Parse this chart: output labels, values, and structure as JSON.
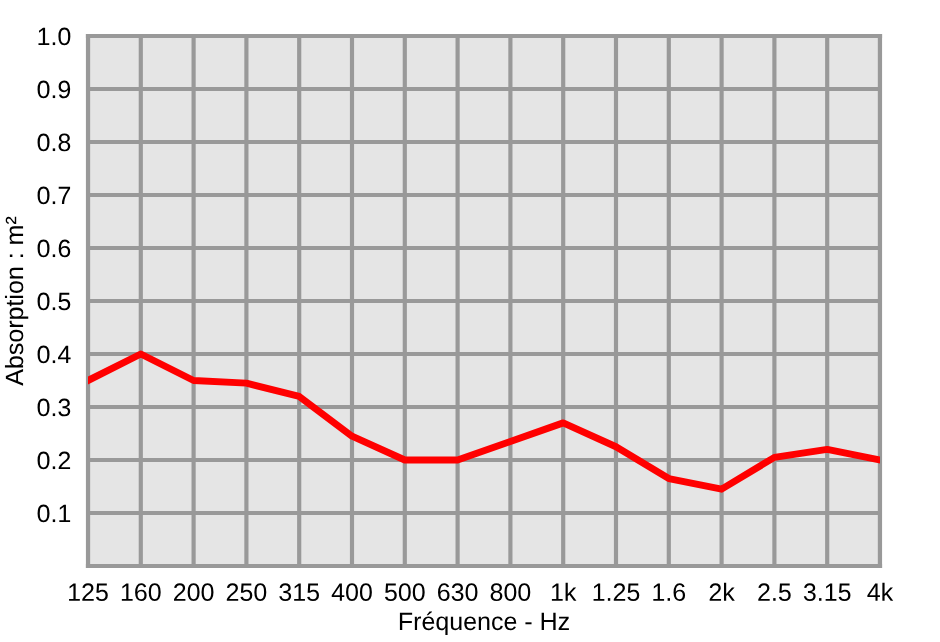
{
  "chart_data": {
    "type": "line",
    "xlabel": "Fréquence - Hz",
    "ylabel": "Absorption : m²",
    "categories": [
      "125",
      "160",
      "200",
      "250",
      "315",
      "400",
      "500",
      "630",
      "800",
      "1k",
      "1.25",
      "1.6",
      "2k",
      "2.5",
      "3.15",
      "4k"
    ],
    "series": [
      {
        "color": "#ff0000",
        "values": [
          0.35,
          0.4,
          0.35,
          0.345,
          0.32,
          0.245,
          0.2,
          0.2,
          0.235,
          0.27,
          0.225,
          0.165,
          0.145,
          0.205,
          0.22,
          0.2
        ]
      }
    ],
    "ylim": [
      0,
      1.0
    ],
    "yticks": [
      0.1,
      0.2,
      0.3,
      0.4,
      0.5,
      0.6,
      0.7,
      0.8,
      0.9,
      {
        "value": 1.0,
        "label": "1.0"
      }
    ],
    "grid": true,
    "marker": "none",
    "line_style": "solid"
  }
}
